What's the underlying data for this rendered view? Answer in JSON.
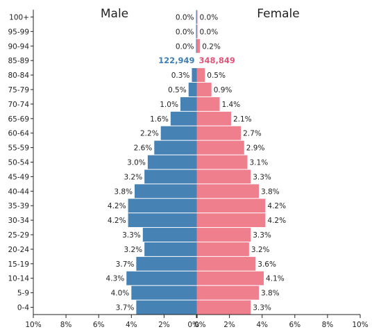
{
  "chart_data": {
    "type": "bar",
    "orientation": "horizontal-pyramid",
    "male_label": "Male",
    "female_label": "Female",
    "categories": [
      "100+",
      "95-99",
      "90-94",
      "85-89",
      "80-84",
      "75-79",
      "70-74",
      "65-69",
      "60-64",
      "55-59",
      "50-54",
      "45-49",
      "40-44",
      "35-39",
      "30-34",
      "25-29",
      "20-24",
      "15-19",
      "10-14",
      "5-9",
      "0-4"
    ],
    "series": [
      {
        "name": "Male",
        "color": "#4682b4",
        "values": [
          0.0,
          0.0,
          0.0,
          null,
          0.3,
          0.5,
          1.0,
          1.6,
          2.2,
          2.6,
          3.0,
          3.2,
          3.8,
          4.2,
          4.2,
          3.3,
          3.2,
          3.7,
          4.3,
          4.0,
          3.7
        ],
        "labels": [
          "0.0%",
          "0.0%",
          "0.0%",
          "122,949",
          "0.3%",
          "0.5%",
          "1.0%",
          "1.6%",
          "2.2%",
          "2.6%",
          "3.0%",
          "3.2%",
          "3.8%",
          "4.2%",
          "4.2%",
          "3.3%",
          "3.2%",
          "3.7%",
          "4.3%",
          "4.0%",
          "3.7%"
        ]
      },
      {
        "name": "Female",
        "color": "#f07f8e",
        "values": [
          0.0,
          0.0,
          0.2,
          null,
          0.5,
          0.9,
          1.4,
          2.1,
          2.7,
          2.9,
          3.1,
          3.3,
          3.8,
          4.2,
          4.2,
          3.3,
          3.2,
          3.6,
          4.1,
          3.8,
          3.3
        ],
        "labels": [
          "0.0%",
          "0.0%",
          "0.2%",
          "348,849",
          "0.5%",
          "0.9%",
          "1.4%",
          "2.1%",
          "2.7%",
          "2.9%",
          "3.1%",
          "3.3%",
          "3.8%",
          "4.2%",
          "4.2%",
          "3.3%",
          "3.2%",
          "3.6%",
          "4.1%",
          "3.8%",
          "3.3%"
        ]
      }
    ],
    "highlight": {
      "category": "85-89",
      "male_color": "#3f7fb6",
      "female_color": "#e0567a"
    },
    "xlim": [
      -10,
      10
    ],
    "xticks": [
      "10%",
      "8%",
      "6%",
      "4%",
      "2%",
      "0%",
      "0%",
      "2%",
      "4%",
      "6%",
      "8%",
      "10%"
    ],
    "grid": false,
    "legend": "none"
  }
}
